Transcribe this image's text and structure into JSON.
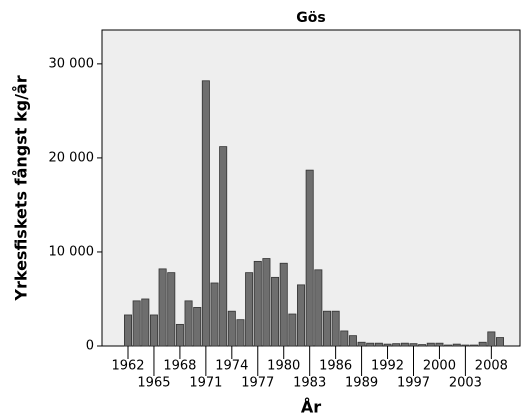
{
  "chart_data": {
    "type": "bar",
    "title": "Gös",
    "x_label": "År",
    "y_label": "Yrkesfiskets fångst kg/år",
    "categories": [
      "1962",
      null,
      null,
      "1965",
      null,
      null,
      "1968",
      null,
      null,
      "1971",
      null,
      null,
      "1974",
      null,
      null,
      "1977",
      null,
      null,
      "1980",
      null,
      null,
      "1983",
      null,
      null,
      "1986",
      null,
      null,
      "1989",
      null,
      null,
      "1992",
      null,
      null,
      "1997",
      null,
      null,
      "2000",
      null,
      null,
      "2003",
      null,
      null,
      "2008",
      null
    ],
    "values": [
      3300,
      4800,
      5000,
      3300,
      8200,
      7800,
      2300,
      4800,
      4100,
      28200,
      6700,
      21200,
      3700,
      2800,
      7800,
      9000,
      9300,
      7300,
      8800,
      3400,
      6500,
      18700,
      8100,
      3700,
      3700,
      1600,
      1100,
      400,
      300,
      300,
      200,
      250,
      300,
      250,
      150,
      300,
      300,
      100,
      200,
      100,
      100,
      400,
      1500,
      900
    ],
    "color": "#6e6e6e",
    "ylim": [
      0,
      33600
    ],
    "yticks": [
      {
        "value": 0,
        "label": "0"
      },
      {
        "value": 10000,
        "label": "10 000"
      },
      {
        "value": 20000,
        "label": "20 000"
      },
      {
        "value": 30000,
        "label": "30 000"
      }
    ]
  }
}
